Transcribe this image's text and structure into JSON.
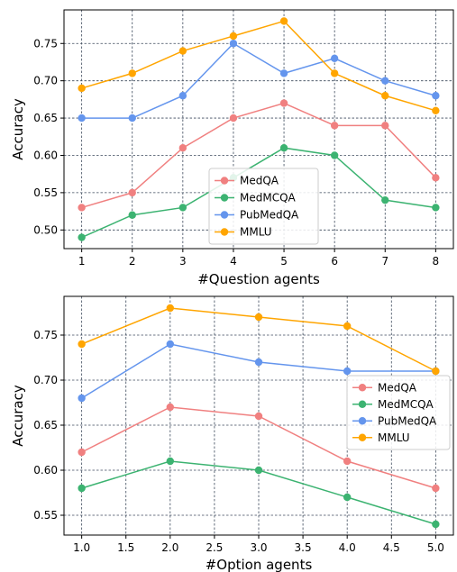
{
  "chart_data": [
    {
      "type": "line",
      "title": "",
      "xlabel": "#Question agents",
      "ylabel": "Accuracy",
      "x": [
        1,
        2,
        3,
        4,
        5,
        6,
        7,
        8
      ],
      "xticks": [
        "1",
        "2",
        "3",
        "4",
        "5",
        "6",
        "7",
        "8"
      ],
      "xlim": [
        0.65,
        8.35
      ],
      "yticks": [
        "0.50",
        "0.55",
        "0.60",
        "0.65",
        "0.70",
        "0.75"
      ],
      "ylim": [
        0.475,
        0.795
      ],
      "grid": true,
      "legend_position": "lower-center",
      "series": [
        {
          "name": "MedQA",
          "color": "#f08080",
          "values": [
            0.53,
            0.55,
            0.61,
            0.65,
            0.67,
            0.64,
            0.64,
            0.57
          ]
        },
        {
          "name": "MedMCQA",
          "color": "#3cb371",
          "values": [
            0.49,
            0.52,
            0.53,
            0.57,
            0.61,
            0.6,
            0.54,
            0.53
          ]
        },
        {
          "name": "PubMedQA",
          "color": "#6495ed",
          "values": [
            0.65,
            0.65,
            0.68,
            0.75,
            0.71,
            0.73,
            0.7,
            0.68
          ]
        },
        {
          "name": "MMLU",
          "color": "#ffa500",
          "values": [
            0.69,
            0.71,
            0.74,
            0.76,
            0.78,
            0.71,
            0.68,
            0.66
          ]
        }
      ]
    },
    {
      "type": "line",
      "title": "",
      "xlabel": "#Option agents",
      "ylabel": "Accuracy",
      "x": [
        1,
        2,
        3,
        4,
        5
      ],
      "xticks": [
        "1.0",
        "1.5",
        "2.0",
        "2.5",
        "3.0",
        "3.5",
        "4.0",
        "4.5",
        "5.0"
      ],
      "xlim": [
        0.8,
        5.2
      ],
      "yticks": [
        "0.55",
        "0.60",
        "0.65",
        "0.70",
        "0.75"
      ],
      "ylim": [
        0.528,
        0.793
      ],
      "grid": true,
      "legend_position": "center-right",
      "series": [
        {
          "name": "MedQA",
          "color": "#f08080",
          "values": [
            0.62,
            0.67,
            0.66,
            0.61,
            0.58
          ]
        },
        {
          "name": "MedMCQA",
          "color": "#3cb371",
          "values": [
            0.58,
            0.61,
            0.6,
            0.57,
            0.54
          ]
        },
        {
          "name": "PubMedQA",
          "color": "#6495ed",
          "values": [
            0.68,
            0.74,
            0.72,
            0.71,
            0.71
          ]
        },
        {
          "name": "MMLU",
          "color": "#ffa500",
          "values": [
            0.74,
            0.78,
            0.77,
            0.76,
            0.71
          ]
        }
      ]
    }
  ]
}
